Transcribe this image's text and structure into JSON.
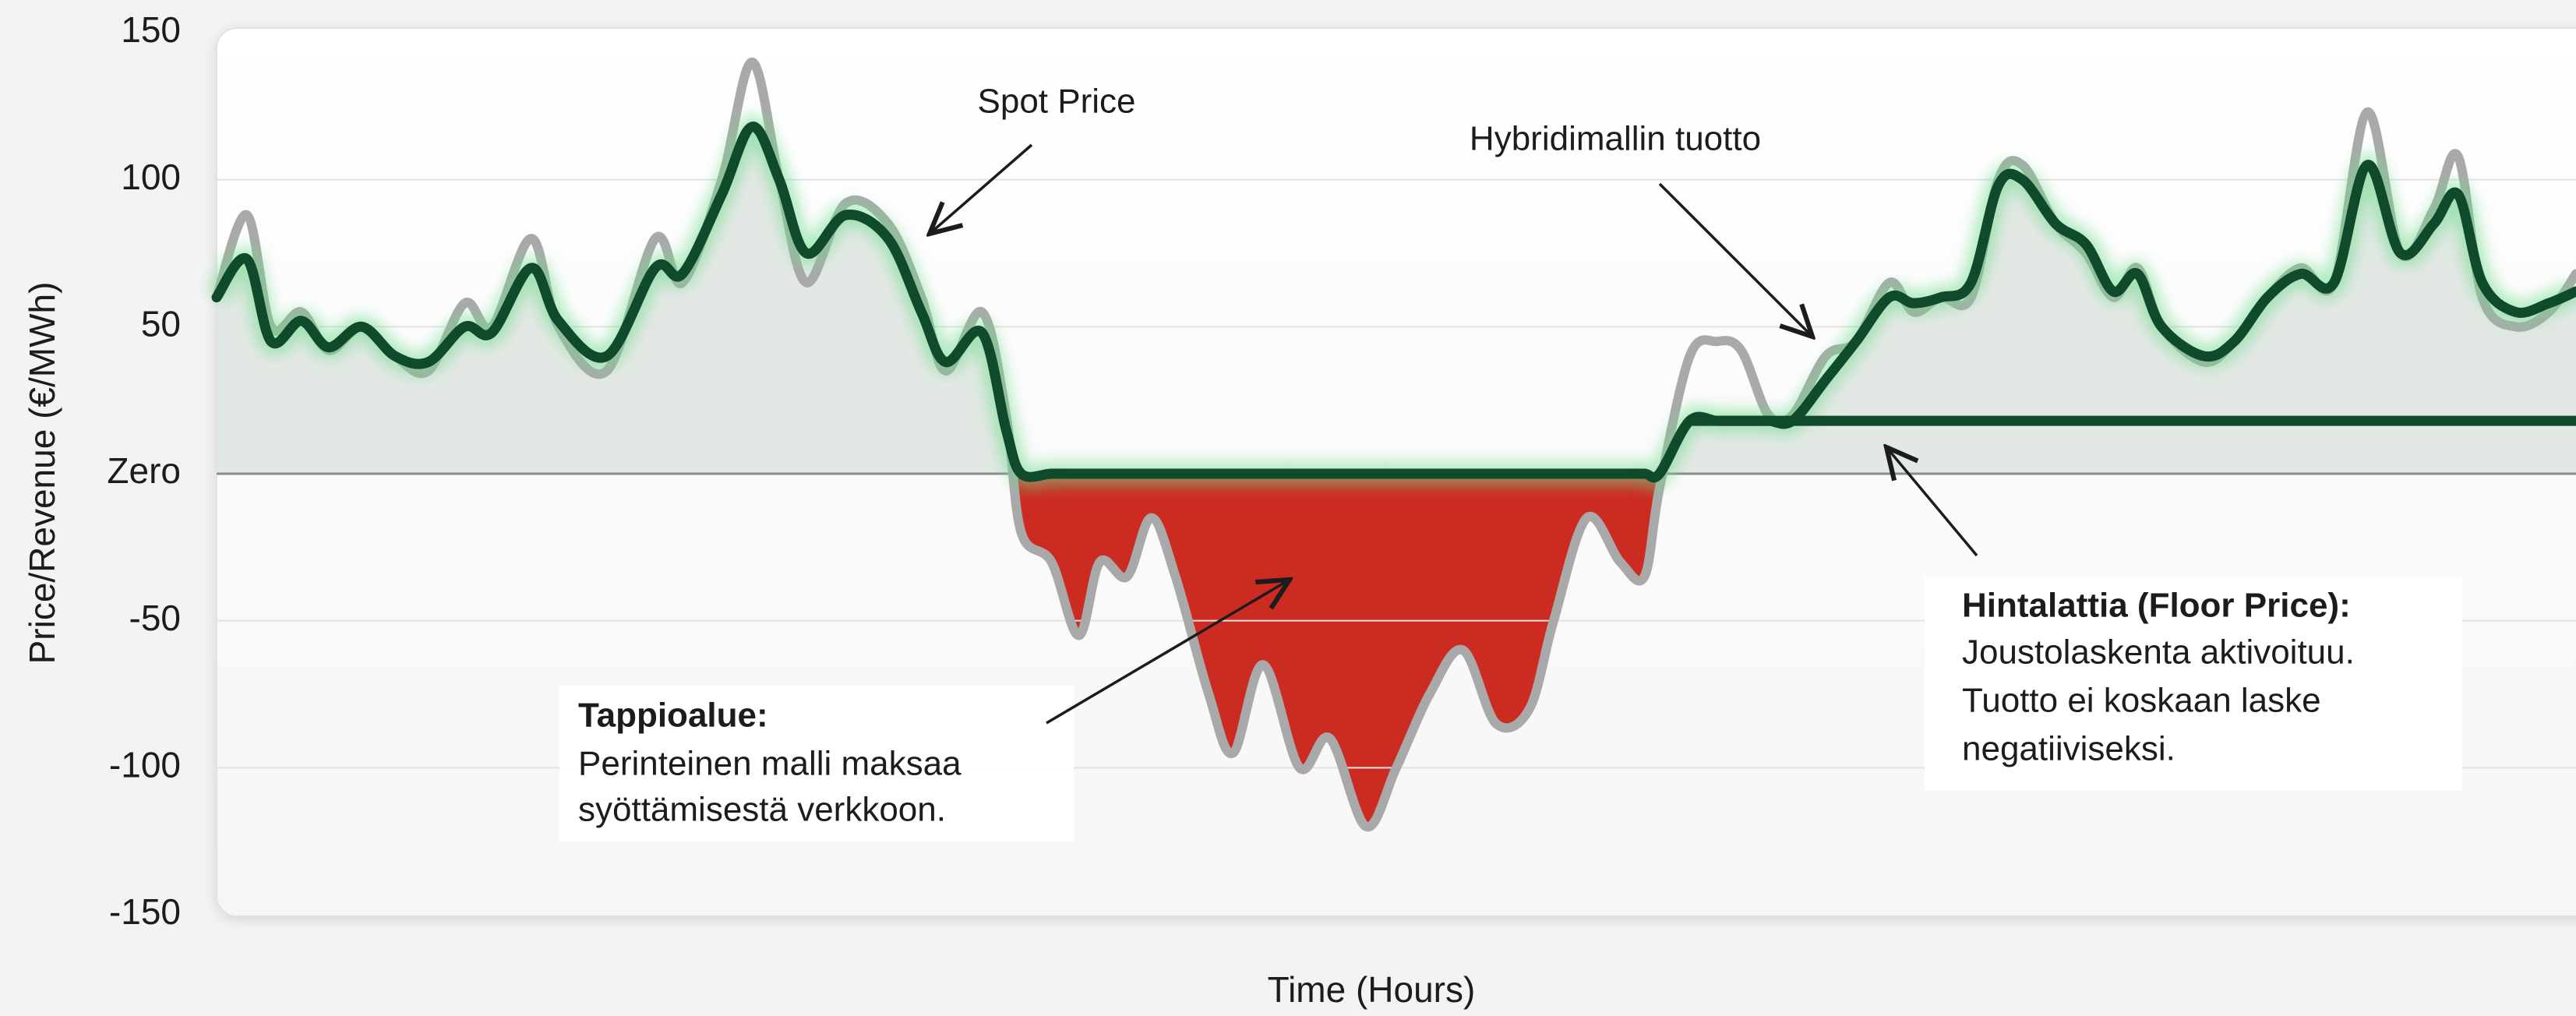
{
  "chart_data": {
    "type": "line",
    "y_label": "Price/Revenue (€/MWh)",
    "x_label": "Time (Hours)",
    "ylim": [
      -150,
      150
    ],
    "yticks": [
      150,
      100,
      50,
      {
        "value": 0,
        "label": "Zero"
      },
      -50,
      -100,
      -150
    ],
    "xlim": [
      0,
      78
    ],
    "grid": true,
    "x": [
      0,
      1,
      1.8,
      2.8,
      3.7,
      4.8,
      5.9,
      7,
      8.2,
      9.1,
      10.4,
      11.3,
      12.9,
      14.5,
      15.4,
      16.7,
      17.7,
      18.6,
      19.5,
      20.8,
      22.2,
      23.3,
      24.1,
      25.3,
      26.1,
      26.6,
      27.6,
      28.5,
      29.2,
      30.1,
      30.9,
      31.7,
      32.8,
      33.6,
      34.6,
      35.8,
      36.8,
      38,
      39,
      40.1,
      41.2,
      42.3,
      43.4,
      44.2,
      45.3,
      46.4,
      47.2,
      47.7,
      48.7,
      49.6,
      50.4,
      51.3,
      52.1,
      53.2,
      54.2,
      55.3,
      56.1,
      57,
      58,
      58.9,
      59.7,
      60.8,
      61.8,
      62.7,
      63.5,
      64.3,
      65.7,
      66.7,
      67.8,
      68.9,
      70,
      71.1,
      72.2,
      73.3,
      74.1,
      74.9,
      76,
      77.1,
      78
    ],
    "series": [
      {
        "name": "Spot Price",
        "color": "#a9a9a9",
        "values": [
          60,
          88,
          50,
          55,
          42,
          50,
          40,
          35,
          58,
          50,
          80,
          50,
          35,
          80,
          65,
          100,
          140,
          100,
          65,
          92,
          85,
          60,
          35,
          55,
          20,
          -20,
          -30,
          -55,
          -30,
          -35,
          -15,
          -35,
          -75,
          -95,
          -65,
          -100,
          -90,
          -120,
          -100,
          -75,
          -60,
          -85,
          -80,
          -50,
          -15,
          -30,
          -35,
          -5,
          40,
          45,
          42,
          20,
          20,
          40,
          45,
          65,
          55,
          60,
          60,
          100,
          105,
          85,
          75,
          60,
          70,
          50,
          38,
          45,
          60,
          70,
          65,
          123,
          75,
          90,
          108,
          60,
          50,
          55,
          68
        ]
      },
      {
        "name": "Hybridimallin tuotto",
        "color": "#0f4a2c",
        "values": [
          60,
          73,
          45,
          52,
          43,
          50,
          40,
          38,
          50,
          48,
          70,
          52,
          40,
          70,
          68,
          95,
          118,
          100,
          75,
          88,
          80,
          55,
          38,
          48,
          15,
          0,
          0,
          0,
          0,
          0,
          0,
          0,
          0,
          0,
          0,
          0,
          0,
          0,
          0,
          0,
          0,
          0,
          0,
          0,
          0,
          0,
          0,
          0,
          18,
          18,
          18,
          18,
          18,
          32,
          45,
          60,
          58,
          60,
          65,
          98,
          100,
          85,
          78,
          62,
          68,
          50,
          40,
          45,
          60,
          68,
          65,
          105,
          75,
          85,
          95,
          65,
          55,
          58,
          62
        ]
      }
    ],
    "floor": 18,
    "loss_color": "#cc2b22",
    "annotations": [
      {
        "title": "Tappioalue:",
        "lines": [
          "Perinteinen malli maksaa",
          "syöttämisestä verkkoon."
        ]
      },
      {
        "title": "Hintalattia (Floor Price):",
        "lines": [
          "Joustolaskenta aktivoituu.",
          "Tuotto ei koskaan laske",
          "negatiiviseksi."
        ]
      }
    ]
  }
}
